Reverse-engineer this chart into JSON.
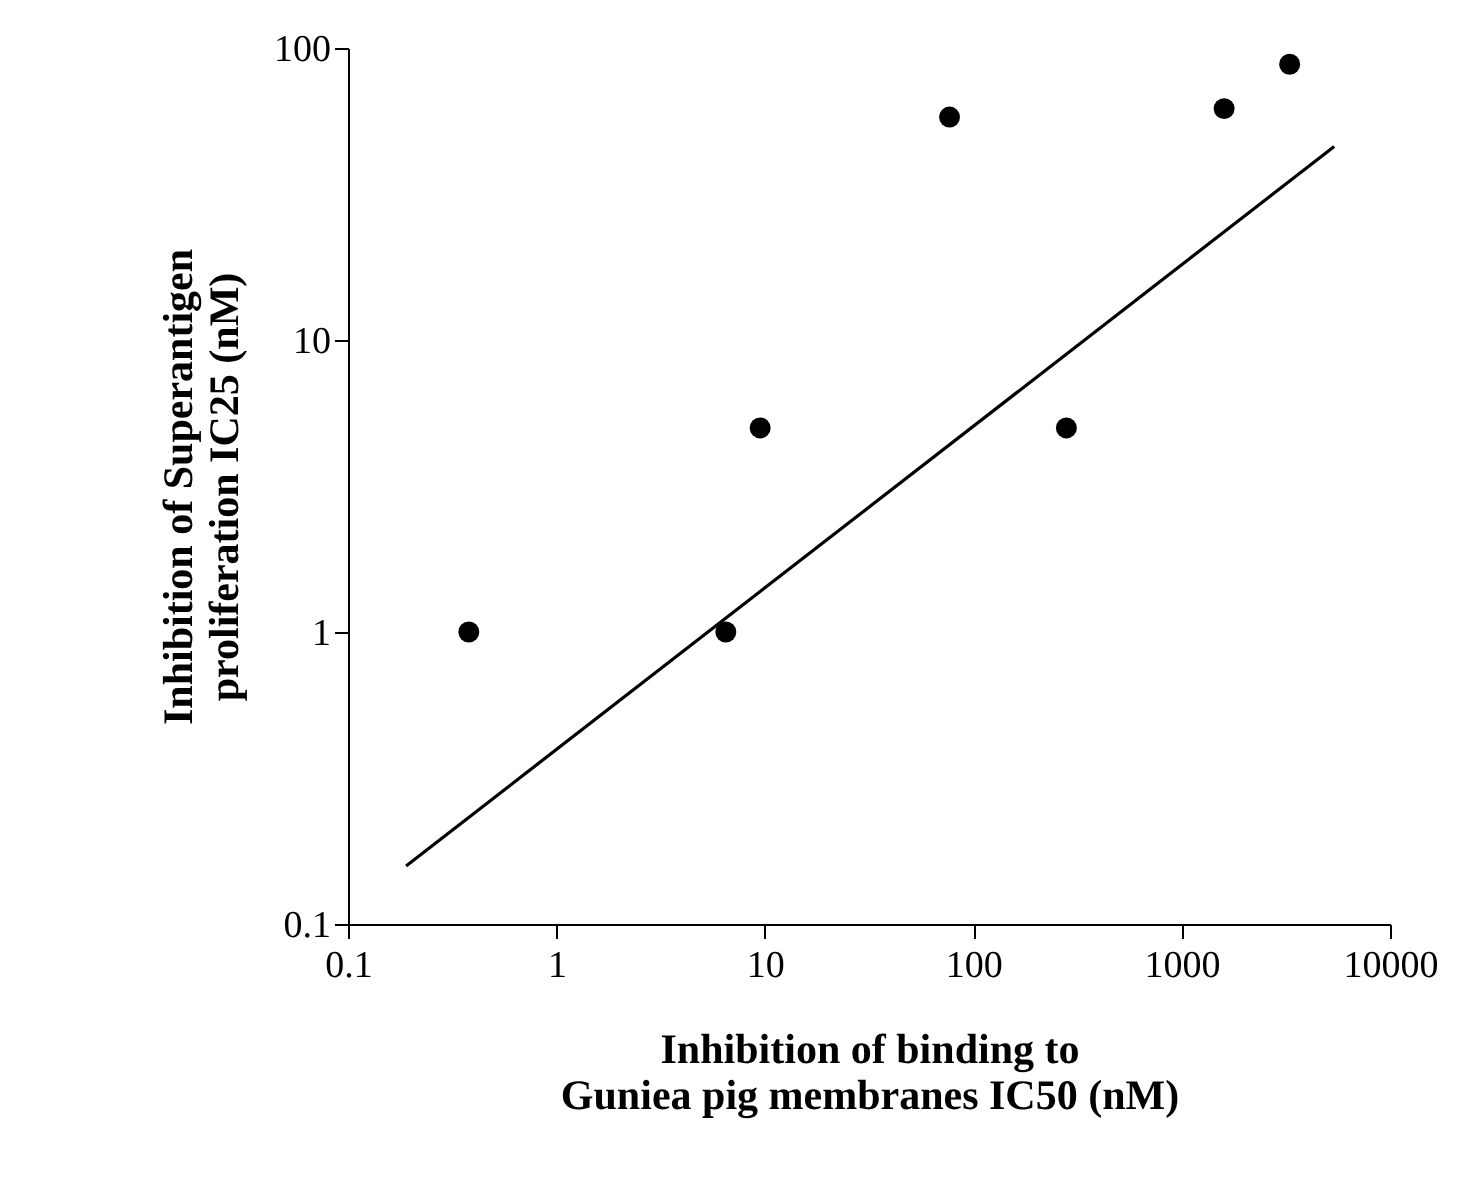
{
  "chart_data": {
    "type": "scatter",
    "xlabel": "Inhibition of binding to\nGuniea pig membranes IC50 (nM)",
    "ylabel": "Inhibition of Superantigen\nproliferation IC25 (nM)",
    "log": "xy",
    "xlim": [
      0.1,
      10000
    ],
    "xticks": [
      0.1,
      1,
      10,
      100,
      1000,
      10000
    ],
    "ylim": [
      0.1,
      100
    ],
    "yticks": [
      0.1,
      1,
      10,
      100
    ],
    "grid": false,
    "series": [
      {
        "type": "scatter",
        "marker": "circle",
        "color": "#000000",
        "x": [
          0.38,
          6.5,
          9.5,
          77,
          280,
          1600,
          3300
        ],
        "values": [
          1,
          1,
          5,
          58,
          5,
          62,
          88
        ]
      },
      {
        "type": "line",
        "color": "#000000",
        "x": [
          0.19,
          5400
        ],
        "values": [
          0.158,
          46
        ]
      }
    ]
  }
}
